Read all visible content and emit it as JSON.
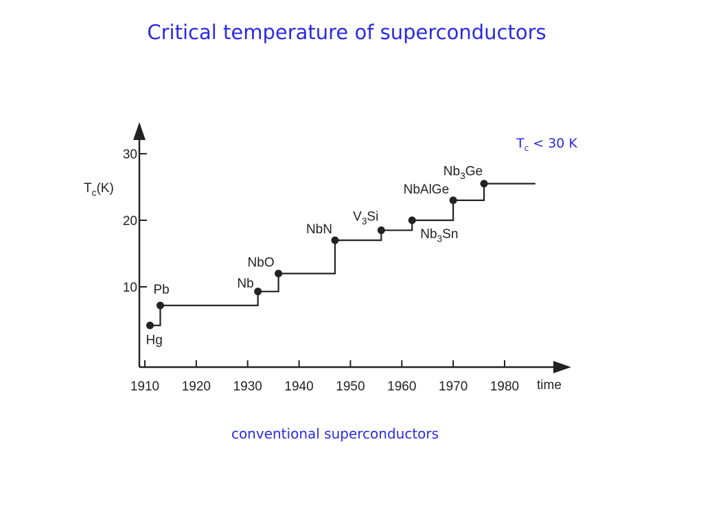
{
  "title": "Critical temperature of superconductors",
  "note": {
    "symbol": "T",
    "subscript": "c",
    "text": " < 30 K"
  },
  "caption": "conventional superconductors",
  "colors": {
    "accent": "#2a2ae6",
    "ink": "#222222"
  },
  "chart_data": {
    "type": "line",
    "step": true,
    "ylabel": {
      "symbol": "T",
      "subscript": "c",
      "suffix": "(K)"
    },
    "xlabel": "time",
    "x_ticks": [
      1910,
      1920,
      1930,
      1940,
      1950,
      1960,
      1970,
      1980
    ],
    "y_ticks": [
      10,
      20,
      30
    ],
    "xlim": [
      1907,
      1995
    ],
    "ylim": [
      0,
      36
    ],
    "grid": false,
    "end_x": 1986,
    "points": [
      {
        "x": 1911,
        "y": 4.2,
        "label": "Hg",
        "sub": ""
      },
      {
        "x": 1913,
        "y": 7.2,
        "label": "Pb",
        "sub": ""
      },
      {
        "x": 1932,
        "y": 9.3,
        "label": "Nb",
        "sub": ""
      },
      {
        "x": 1936,
        "y": 12,
        "label": "NbO",
        "sub": ""
      },
      {
        "x": 1947,
        "y": 17,
        "label": "NbN",
        "sub": ""
      },
      {
        "x": 1956,
        "y": 18.5,
        "label": "V3Si",
        "sub": "3"
      },
      {
        "x": 1962,
        "y": 20,
        "label": "Nb3Sn",
        "sub": "3"
      },
      {
        "x": 1970,
        "y": 23,
        "label": "NbAlGe",
        "sub": ""
      },
      {
        "x": 1976,
        "y": 25.5,
        "label": "Nb3Ge",
        "sub": "3"
      }
    ]
  }
}
